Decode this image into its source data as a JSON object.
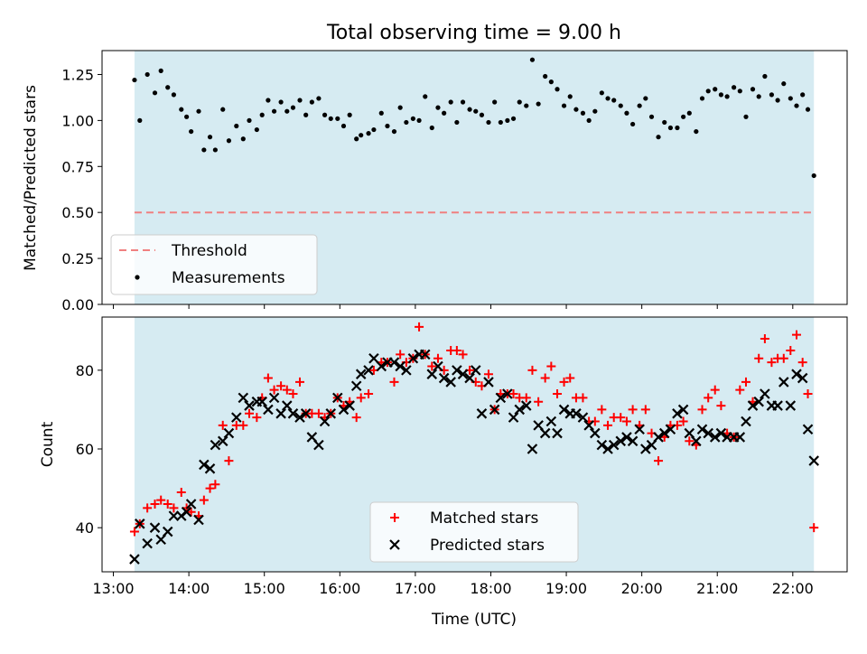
{
  "chart_data": [
    {
      "type": "scatter",
      "title": "Total observing time = 9.00 h",
      "ylabel": "Matched/Predicted stars",
      "xlabel": "",
      "xlim": [
        12.85,
        22.72
      ],
      "ylim": [
        0.0,
        1.38
      ],
      "yticks": [
        "0.00",
        "0.25",
        "0.50",
        "0.75",
        "1.00",
        "1.25"
      ],
      "ytick_values": [
        0.0,
        0.25,
        0.5,
        0.75,
        1.0,
        1.25
      ],
      "xtick_values": [
        13,
        14,
        15,
        16,
        17,
        18,
        19,
        20,
        21,
        22
      ],
      "observing_window": [
        13.28,
        22.28
      ],
      "legend": {
        "placement": "lower-left",
        "entries": [
          "Threshold",
          "Measurements"
        ]
      },
      "colors": {
        "threshold": "#f08080",
        "measurements": "#000000",
        "band": "#add8e6"
      },
      "threshold": {
        "name": "Threshold",
        "value": 0.5
      },
      "series": [
        {
          "name": "Measurements",
          "x": [
            13.28,
            13.35,
            13.45,
            13.55,
            13.63,
            13.72,
            13.8,
            13.9,
            13.97,
            14.03,
            14.13,
            14.2,
            14.28,
            14.35,
            14.45,
            14.53,
            14.63,
            14.72,
            14.8,
            14.9,
            14.97,
            15.05,
            15.13,
            15.22,
            15.3,
            15.38,
            15.47,
            15.55,
            15.63,
            15.72,
            15.8,
            15.88,
            15.97,
            16.05,
            16.13,
            16.22,
            16.28,
            16.38,
            16.45,
            16.55,
            16.63,
            16.72,
            16.8,
            16.88,
            16.97,
            17.05,
            17.13,
            17.22,
            17.3,
            17.38,
            17.47,
            17.55,
            17.63,
            17.72,
            17.8,
            17.88,
            17.97,
            18.05,
            18.13,
            18.22,
            18.3,
            18.38,
            18.47,
            18.55,
            18.63,
            18.72,
            18.8,
            18.88,
            18.97,
            19.05,
            19.13,
            19.22,
            19.3,
            19.38,
            19.47,
            19.55,
            19.63,
            19.72,
            19.8,
            19.88,
            19.97,
            20.05,
            20.13,
            20.22,
            20.3,
            20.38,
            20.47,
            20.55,
            20.63,
            20.72,
            20.8,
            20.88,
            20.97,
            21.05,
            21.13,
            21.22,
            21.3,
            21.38,
            21.47,
            21.55,
            21.63,
            21.72,
            21.8,
            21.88,
            21.97,
            22.05,
            22.13,
            22.2,
            22.28
          ],
          "y": [
            1.22,
            1.0,
            1.25,
            1.15,
            1.27,
            1.18,
            1.14,
            1.06,
            1.02,
            0.94,
            1.05,
            0.84,
            0.91,
            0.84,
            1.06,
            0.89,
            0.97,
            0.9,
            1.0,
            0.95,
            1.03,
            1.11,
            1.05,
            1.1,
            1.05,
            1.07,
            1.11,
            1.03,
            1.1,
            1.12,
            1.03,
            1.01,
            1.01,
            0.97,
            1.03,
            0.9,
            0.92,
            0.93,
            0.95,
            1.04,
            0.97,
            0.94,
            1.07,
            0.99,
            1.01,
            1.0,
            1.13,
            0.96,
            1.07,
            1.04,
            1.1,
            0.99,
            1.1,
            1.06,
            1.05,
            1.03,
            0.99,
            1.1,
            0.99,
            1.0,
            1.01,
            1.1,
            1.08,
            1.33,
            1.09,
            1.24,
            1.21,
            1.17,
            1.08,
            1.13,
            1.06,
            1.04,
            1.0,
            1.05,
            1.15,
            1.12,
            1.11,
            1.08,
            1.04,
            0.98,
            1.08,
            1.12,
            1.02,
            0.91,
            0.99,
            0.96,
            0.96,
            1.02,
            1.04,
            0.94,
            1.12,
            1.16,
            1.17,
            1.14,
            1.13,
            1.18,
            1.16,
            1.02,
            1.17,
            1.13,
            1.24,
            1.14,
            1.11,
            1.2,
            1.12,
            1.08,
            1.14,
            1.06,
            0.7
          ]
        }
      ]
    },
    {
      "type": "scatter",
      "title": "",
      "ylabel": "Count",
      "xlabel": "Time (UTC)",
      "xlim": [
        12.85,
        22.72
      ],
      "ylim": [
        28.8,
        93.5
      ],
      "yticks": [
        "40",
        "60",
        "80"
      ],
      "ytick_values": [
        40,
        60,
        80
      ],
      "xticks": [
        "13:00",
        "14:00",
        "15:00",
        "16:00",
        "17:00",
        "18:00",
        "19:00",
        "20:00",
        "21:00",
        "22:00"
      ],
      "xtick_values": [
        13,
        14,
        15,
        16,
        17,
        18,
        19,
        20,
        21,
        22
      ],
      "observing_window": [
        13.28,
        22.28
      ],
      "legend": {
        "placement": "lower-center",
        "entries": [
          "Matched stars",
          "Predicted stars"
        ]
      },
      "colors": {
        "matched": "#ff0000",
        "predicted": "#000000",
        "band": "#add8e6"
      },
      "series": [
        {
          "name": "Matched stars",
          "marker": "plus",
          "x": [
            13.28,
            13.35,
            13.45,
            13.55,
            13.63,
            13.72,
            13.8,
            13.9,
            13.97,
            14.03,
            14.13,
            14.2,
            14.28,
            14.35,
            14.45,
            14.53,
            14.63,
            14.72,
            14.8,
            14.9,
            14.97,
            15.05,
            15.13,
            15.22,
            15.3,
            15.38,
            15.47,
            15.55,
            15.63,
            15.72,
            15.8,
            15.88,
            15.97,
            16.05,
            16.13,
            16.22,
            16.28,
            16.38,
            16.45,
            16.55,
            16.63,
            16.72,
            16.8,
            16.88,
            16.97,
            17.05,
            17.13,
            17.22,
            17.3,
            17.38,
            17.47,
            17.55,
            17.63,
            17.72,
            17.8,
            17.88,
            17.97,
            18.05,
            18.13,
            18.22,
            18.3,
            18.38,
            18.47,
            18.55,
            18.63,
            18.72,
            18.8,
            18.88,
            18.97,
            19.05,
            19.13,
            19.22,
            19.3,
            19.38,
            19.47,
            19.55,
            19.63,
            19.72,
            19.8,
            19.88,
            19.97,
            20.05,
            20.13,
            20.22,
            20.3,
            20.38,
            20.47,
            20.55,
            20.63,
            20.72,
            20.8,
            20.88,
            20.97,
            21.05,
            21.13,
            21.22,
            21.3,
            21.38,
            21.47,
            21.55,
            21.63,
            21.72,
            21.8,
            21.88,
            21.97,
            22.05,
            22.13,
            22.2,
            22.28
          ],
          "y": [
            39,
            41,
            45,
            46,
            47,
            46,
            45,
            49,
            45,
            44,
            43,
            47,
            50,
            51,
            66,
            57,
            66,
            66,
            69,
            68,
            73,
            78,
            75,
            76,
            75,
            74,
            77,
            69,
            69,
            69,
            68,
            69,
            73,
            71,
            72,
            68,
            73,
            74,
            80,
            82,
            82,
            77,
            84,
            82,
            83,
            91,
            84,
            81,
            83,
            80,
            85,
            85,
            84,
            80,
            77,
            76,
            79,
            70,
            74,
            74,
            74,
            73,
            73,
            80,
            72,
            78,
            81,
            74,
            77,
            78,
            73,
            73,
            67,
            67,
            70,
            66,
            68,
            68,
            67,
            70,
            66,
            70,
            64,
            57,
            63,
            66,
            66,
            67,
            62,
            61,
            70,
            73,
            75,
            71,
            64,
            63,
            75,
            77,
            72,
            83,
            88,
            82,
            83,
            83,
            85,
            89,
            82,
            74,
            40
          ]
        },
        {
          "name": "Predicted stars",
          "marker": "x",
          "x": [
            13.28,
            13.35,
            13.45,
            13.55,
            13.63,
            13.72,
            13.8,
            13.9,
            13.97,
            14.03,
            14.13,
            14.2,
            14.28,
            14.35,
            14.45,
            14.53,
            14.63,
            14.72,
            14.8,
            14.9,
            14.97,
            15.05,
            15.13,
            15.22,
            15.3,
            15.38,
            15.47,
            15.55,
            15.63,
            15.72,
            15.8,
            15.88,
            15.97,
            16.05,
            16.13,
            16.22,
            16.28,
            16.38,
            16.45,
            16.55,
            16.63,
            16.72,
            16.8,
            16.88,
            16.97,
            17.05,
            17.13,
            17.22,
            17.3,
            17.38,
            17.47,
            17.55,
            17.63,
            17.72,
            17.8,
            17.88,
            17.97,
            18.05,
            18.13,
            18.22,
            18.3,
            18.38,
            18.47,
            18.55,
            18.63,
            18.72,
            18.8,
            18.88,
            18.97,
            19.05,
            19.13,
            19.22,
            19.3,
            19.38,
            19.47,
            19.55,
            19.63,
            19.72,
            19.8,
            19.88,
            19.97,
            20.05,
            20.13,
            20.22,
            20.3,
            20.38,
            20.47,
            20.55,
            20.63,
            20.72,
            20.8,
            20.88,
            20.97,
            21.05,
            21.13,
            21.22,
            21.3,
            21.38,
            21.47,
            21.55,
            21.63,
            21.72,
            21.8,
            21.88,
            21.97,
            22.05,
            22.13,
            22.2,
            22.28
          ],
          "y": [
            32,
            41,
            36,
            40,
            37,
            39,
            43,
            43,
            44,
            46,
            42,
            56,
            55,
            61,
            62,
            64,
            68,
            73,
            71,
            72,
            72,
            70,
            73,
            69,
            71,
            69,
            68,
            69,
            63,
            61,
            67,
            69,
            73,
            70,
            71,
            76,
            79,
            80,
            83,
            81,
            82,
            82,
            81,
            80,
            83,
            84,
            84,
            79,
            81,
            78,
            77,
            80,
            79,
            78,
            80,
            69,
            77,
            70,
            73,
            74,
            68,
            70,
            71,
            60,
            66,
            64,
            67,
            64,
            70,
            69,
            69,
            68,
            66,
            64,
            61,
            60,
            61,
            62,
            63,
            62,
            65,
            60,
            61,
            63,
            64,
            65,
            69,
            70,
            64,
            62,
            65,
            64,
            63,
            64,
            63,
            63,
            63,
            67,
            71,
            72,
            74,
            71,
            71,
            77,
            71,
            79,
            78,
            65,
            57
          ]
        }
      ]
    }
  ]
}
